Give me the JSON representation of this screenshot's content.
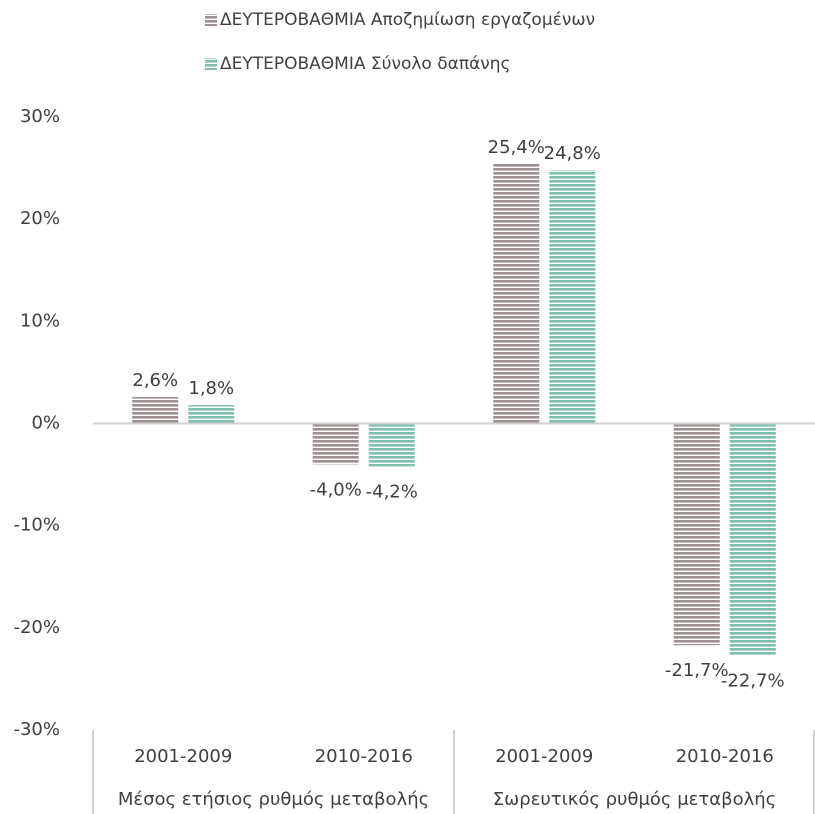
{
  "chart_data": {
    "type": "bar",
    "groups": [
      {
        "name": "Μέσος ετήσιος ρυθμός μεταβολής",
        "categories": [
          "2001-2009",
          "2010-2016"
        ]
      },
      {
        "name": "Σωρευτικός ρυθμός μεταβολής",
        "categories": [
          "2001-2009",
          "2010-2016"
        ]
      }
    ],
    "series": [
      {
        "name": "ΔΕΥΤΕΡΟΒΑΘΜΙΑ Αποζημίωση εργαζομένων",
        "color": "#9e9090",
        "values": [
          2.6,
          -4.0,
          25.4,
          -21.7
        ],
        "value_labels": [
          "2,6%",
          "-4,0%",
          "25,4%",
          "-21,7%"
        ]
      },
      {
        "name": "ΔΕΥΤΕΡΟΒΑΘΜΙΑ Σύνολο δαπάνης",
        "color": "#7dbfad",
        "values": [
          1.8,
          -4.2,
          24.8,
          -22.7
        ],
        "value_labels": [
          "1,8%",
          "-4,2%",
          "24,8%",
          "-22,7%"
        ]
      }
    ],
    "ylim": [
      -30,
      30
    ],
    "yticks": [
      {
        "value": -30,
        "label": "-30%"
      },
      {
        "value": -20,
        "label": "-20%"
      },
      {
        "value": -10,
        "label": "-10%"
      },
      {
        "value": 0,
        "label": "0%"
      },
      {
        "value": 10,
        "label": "10%"
      },
      {
        "value": 20,
        "label": "20%"
      },
      {
        "value": 30,
        "label": "30%"
      }
    ],
    "legend": "top"
  }
}
